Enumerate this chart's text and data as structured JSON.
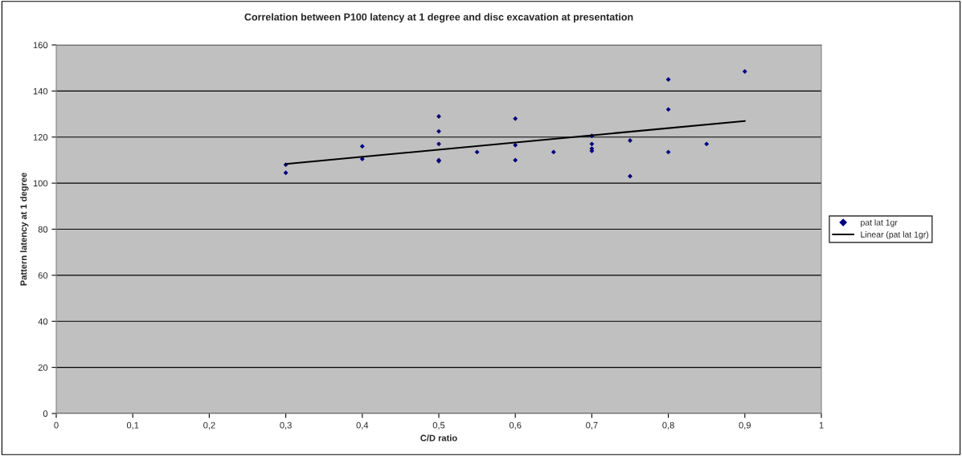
{
  "chart_data": {
    "type": "scatter",
    "title": "Correlation between P100 latency at 1 degree and disc excavation at presentation",
    "xlabel": "C/D ratio",
    "ylabel": "Pattern latency at 1 degree",
    "xlim": [
      0,
      1
    ],
    "xticks": [
      {
        "value": 0,
        "label": "0"
      },
      {
        "value": 0.1,
        "label": "0,1"
      },
      {
        "value": 0.2,
        "label": "0,2"
      },
      {
        "value": 0.3,
        "label": "0,3"
      },
      {
        "value": 0.4,
        "label": "0,4"
      },
      {
        "value": 0.5,
        "label": "0,5"
      },
      {
        "value": 0.6,
        "label": "0,6"
      },
      {
        "value": 0.7,
        "label": "0,7"
      },
      {
        "value": 0.8,
        "label": "0,8"
      },
      {
        "value": 0.9,
        "label": "0,9"
      },
      {
        "value": 1,
        "label": "1"
      }
    ],
    "ylim": [
      0,
      160
    ],
    "yticks": [
      0,
      20,
      40,
      60,
      80,
      100,
      120,
      140,
      160
    ],
    "grid": "y",
    "legend": "right",
    "marker": "diamond",
    "series": [
      {
        "name": "pat lat 1gr",
        "color": "#000080",
        "x": [
          0.3,
          0.3,
          0.4,
          0.4,
          0.5,
          0.5,
          0.5,
          0.5,
          0.5,
          0.55,
          0.6,
          0.6,
          0.6,
          0.65,
          0.7,
          0.7,
          0.7,
          0.7,
          0.75,
          0.75,
          0.8,
          0.8,
          0.8,
          0.85,
          0.9
        ],
        "values": [
          108,
          104.5,
          116,
          110.5,
          129,
          122.5,
          117,
          110,
          109.5,
          113.5,
          128,
          116.5,
          110,
          113.5,
          120.5,
          117,
          115,
          114,
          118.5,
          103,
          145,
          132,
          113.5,
          117,
          148.5
        ]
      },
      {
        "name": "Linear (pat lat 1gr)",
        "type": "line",
        "color": "#000000",
        "marker": "none",
        "x": [
          0.3,
          0.9
        ],
        "values": [
          108.3,
          127
        ]
      }
    ]
  }
}
